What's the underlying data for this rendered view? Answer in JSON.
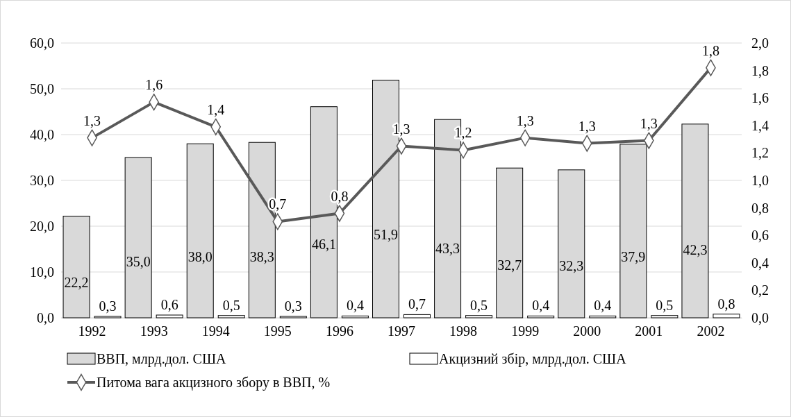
{
  "chart_data": {
    "type": "bar",
    "categories": [
      "1992",
      "1993",
      "1994",
      "1995",
      "1996",
      "1997",
      "1998",
      "1999",
      "2000",
      "2001",
      "2002"
    ],
    "series": [
      {
        "name": "ВВП, млрд.дол. США",
        "color": "#d9d9d9",
        "values": [
          22.2,
          35.0,
          38.0,
          38.3,
          46.1,
          51.9,
          43.3,
          32.7,
          32.3,
          37.9,
          42.3
        ],
        "value_labels": [
          "22,2",
          "35,0",
          "38,0",
          "38,3",
          "46,1",
          "51,9",
          "43,3",
          "32,7",
          "32,3",
          "37,9",
          "42,3"
        ]
      },
      {
        "name": "Акцизний збір, млрд.дол. США",
        "color": "#ffffff",
        "values": [
          0.3,
          0.6,
          0.5,
          0.3,
          0.4,
          0.7,
          0.5,
          0.4,
          0.4,
          0.5,
          0.8
        ],
        "value_labels": [
          "0,3",
          "0,6",
          "0,5",
          "0,3",
          "0,4",
          "0,7",
          "0,5",
          "0,4",
          "0,4",
          "0,5",
          "0,8"
        ]
      },
      {
        "name": "Питома вага акцизного збору в ВВП, %",
        "type": "line",
        "axis": "y2",
        "color": "#595959",
        "marker": "diamond",
        "values": [
          1.31,
          1.57,
          1.39,
          0.7,
          0.76,
          1.25,
          1.22,
          1.31,
          1.27,
          1.29,
          1.82
        ],
        "value_labels": [
          "1,3",
          "1,6",
          "1,4",
          "0,7",
          "0,8",
          "1,3",
          "1,2",
          "1,3",
          "1,3",
          "1,3",
          "1,8"
        ]
      }
    ],
    "ylim": [
      0,
      60
    ],
    "yticks": [
      {
        "value": 0,
        "label": "0,0"
      },
      {
        "value": 10,
        "label": "10,0"
      },
      {
        "value": 20,
        "label": "20,0"
      },
      {
        "value": 30,
        "label": "30,0"
      },
      {
        "value": 40,
        "label": "40,0"
      },
      {
        "value": 50,
        "label": "50,0"
      },
      {
        "value": 60,
        "label": "60,0"
      }
    ],
    "y2lim": [
      0,
      2
    ],
    "y2ticks": [
      {
        "value": 0,
        "label": "0,0"
      },
      {
        "value": 0.2,
        "label": "0,2"
      },
      {
        "value": 0.4,
        "label": "0,4"
      },
      {
        "value": 0.6,
        "label": "0,6"
      },
      {
        "value": 0.8,
        "label": "0,8"
      },
      {
        "value": 1,
        "label": "1,0"
      },
      {
        "value": 1.2,
        "label": "1,2"
      },
      {
        "value": 1.4,
        "label": "1,4"
      },
      {
        "value": 1.6,
        "label": "1,6"
      },
      {
        "value": 1.8,
        "label": "1,8"
      },
      {
        "value": 2,
        "label": "2,0"
      }
    ],
    "grid": "y",
    "legend": "bottom"
  }
}
